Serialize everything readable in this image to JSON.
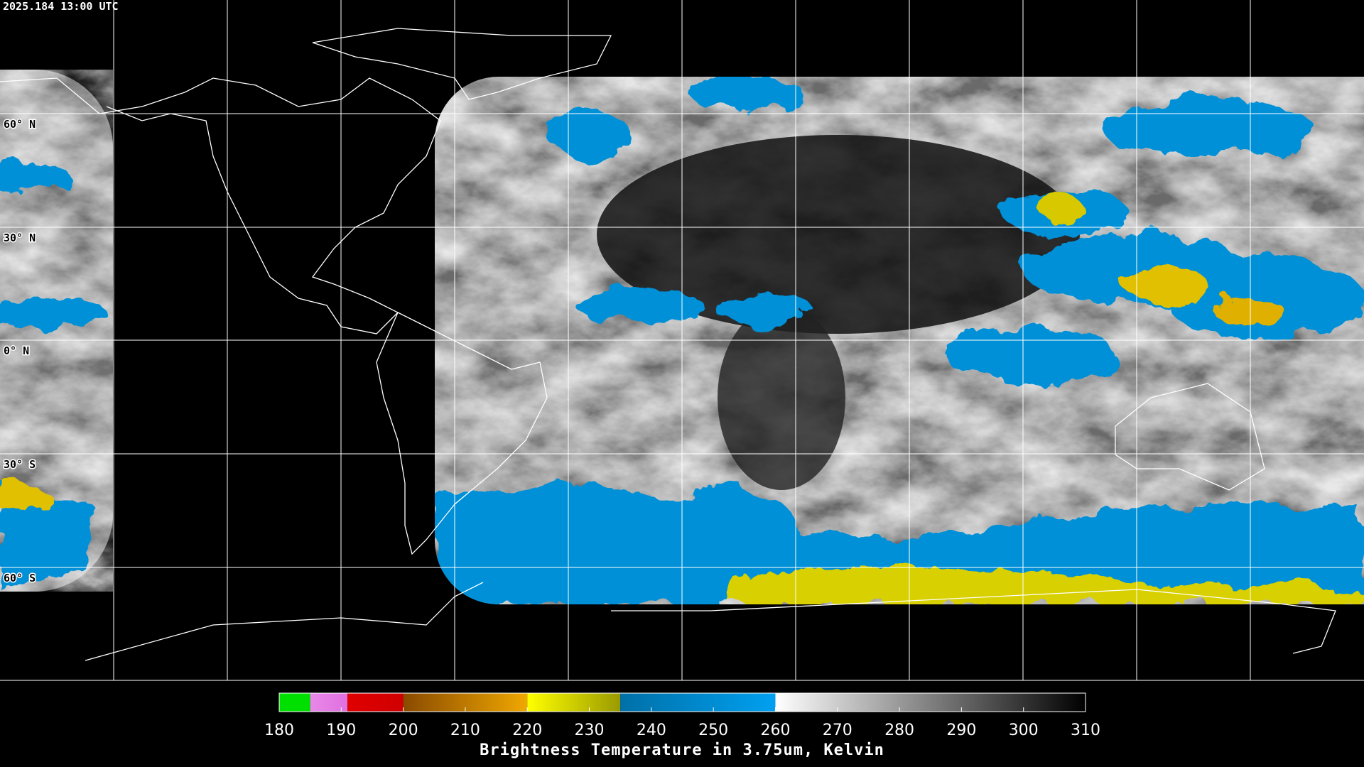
{
  "timestamp": "2025.184 13:00 UTC",
  "lat_labels": [
    "60° N",
    "30° N",
    "0° N",
    "30° S",
    "60° S"
  ],
  "colorbar": {
    "title": "Brightness Temperature in 3.75um, Kelvin",
    "range": [
      180,
      310
    ],
    "ticks": [
      180,
      190,
      200,
      210,
      220,
      230,
      240,
      250,
      260,
      270,
      280,
      290,
      300,
      310
    ],
    "segments": [
      {
        "from": 180,
        "to": 185,
        "color": "#00e000",
        "color2": "#00e000"
      },
      {
        "from": 185,
        "to": 191,
        "color": "#e888e8",
        "color2": "#e070e0"
      },
      {
        "from": 191,
        "to": 200,
        "color": "#e00000",
        "color2": "#d00000"
      },
      {
        "from": 200,
        "to": 220,
        "color": "#8a4a00",
        "color2": "#f0a800"
      },
      {
        "from": 220,
        "to": 235,
        "color": "#ffff00",
        "color2": "#9a9a00"
      },
      {
        "from": 235,
        "to": 260,
        "color": "#0070a8",
        "color2": "#00a0f0"
      },
      {
        "from": 260,
        "to": 310,
        "color": "#ffffff",
        "color2": "#000000"
      }
    ]
  }
}
